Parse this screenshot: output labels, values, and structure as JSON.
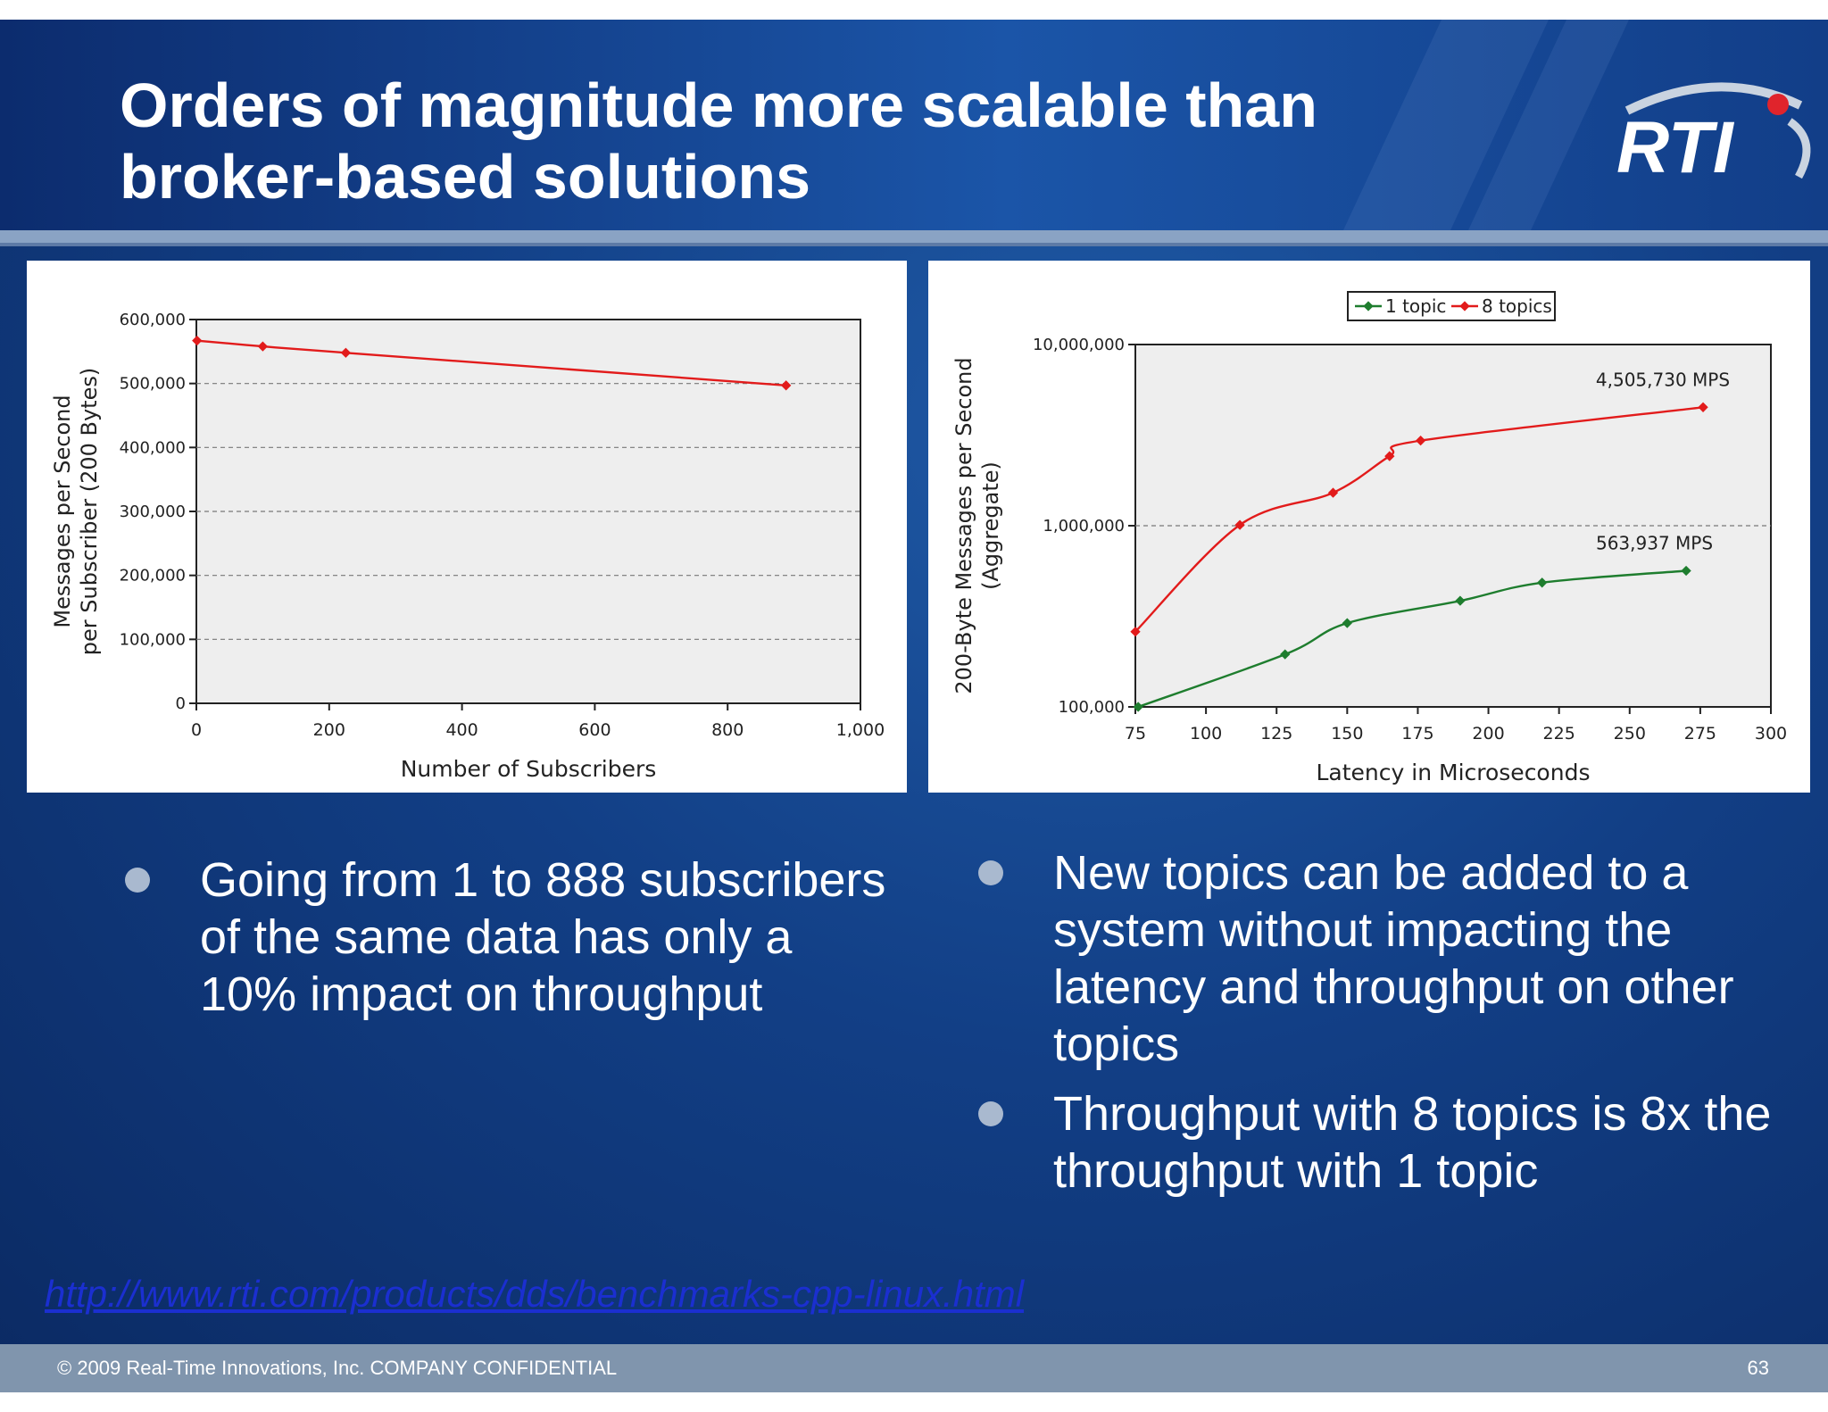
{
  "slide": {
    "title_lines": [
      "Orders of magnitude more scalable than",
      "broker-based solutions"
    ],
    "logo_text": "RTI",
    "bullets_left": [
      "Going from 1 to 888 subscribers of the same data has only a 10% impact on throughput"
    ],
    "bullets_right": [
      "New topics can be added to a system without impacting the latency and throughput on other topics",
      "Throughput with 8 topics is 8x the throughput with 1 topic"
    ],
    "source_link": "http://www.rti.com/products/dds/benchmarks-cpp-linux.html",
    "footer": {
      "copyright": "© 2009 Real-Time Innovations, Inc.  COMPANY CONFIDENTIAL",
      "page_number": "63"
    },
    "colors": {
      "red_series": "#e21b1b",
      "green_series": "#1e7d2e",
      "plot_bg": "#eeeeee",
      "title_band": "#123e88",
      "footer": "#8095ad"
    }
  },
  "chart_data": [
    {
      "type": "line",
      "title": "",
      "xlabel": "Number of Subscribers",
      "ylabel_lines": [
        "Messages per Second",
        "per Subscriber (200 Bytes)"
      ],
      "xlim": [
        0,
        1000
      ],
      "ylim": [
        0,
        600000
      ],
      "x_ticks": [
        0,
        200,
        400,
        600,
        800,
        1000
      ],
      "x_tick_labels": [
        "0",
        "200",
        "400",
        "600",
        "800",
        "1,000"
      ],
      "y_ticks": [
        0,
        100000,
        200000,
        300000,
        400000,
        500000,
        600000
      ],
      "y_tick_labels": [
        "0",
        "100,000",
        "200,000",
        "300,000",
        "400,000",
        "500,000",
        "600,000"
      ],
      "grid": "horizontal dashed",
      "legend": "none",
      "series": [
        {
          "color": "#e21b1b",
          "x": [
            1,
            100,
            225,
            888
          ],
          "y": [
            567000,
            558000,
            548000,
            497000
          ]
        }
      ]
    },
    {
      "type": "line",
      "title": "",
      "xlabel": "Latency in Microseconds",
      "ylabel_lines": [
        "200-Byte Messages per Second",
        "(Aggregate)"
      ],
      "xlim": [
        75,
        300
      ],
      "ylim": [
        100000,
        10000000
      ],
      "y_scale": "log",
      "x_ticks": [
        75,
        100,
        125,
        150,
        175,
        200,
        225,
        250,
        275,
        300
      ],
      "x_tick_labels": [
        "75",
        "100",
        "125",
        "150",
        "175",
        "200",
        "225",
        "250",
        "275",
        "300"
      ],
      "y_ticks": [
        100000,
        1000000,
        10000000
      ],
      "y_tick_labels": [
        "100,000",
        "1,000,000",
        "10,000,000"
      ],
      "grid": "horizontal dashed",
      "legend": "top-center",
      "series": [
        {
          "name": "1 topic",
          "color": "#1e7d2e",
          "x": [
            76,
            128,
            150,
            190,
            219,
            270
          ],
          "y": [
            100000,
            195000,
            290000,
            385000,
            485000,
            563937
          ],
          "annotation": "563,937 MPS"
        },
        {
          "name": "8 topics",
          "color": "#e21b1b",
          "x": [
            75,
            112,
            145,
            165,
            176,
            276
          ],
          "y": [
            260000,
            1010000,
            1520000,
            2420000,
            2950000,
            4505730
          ],
          "annotation": "4,505,730 MPS"
        }
      ]
    }
  ]
}
